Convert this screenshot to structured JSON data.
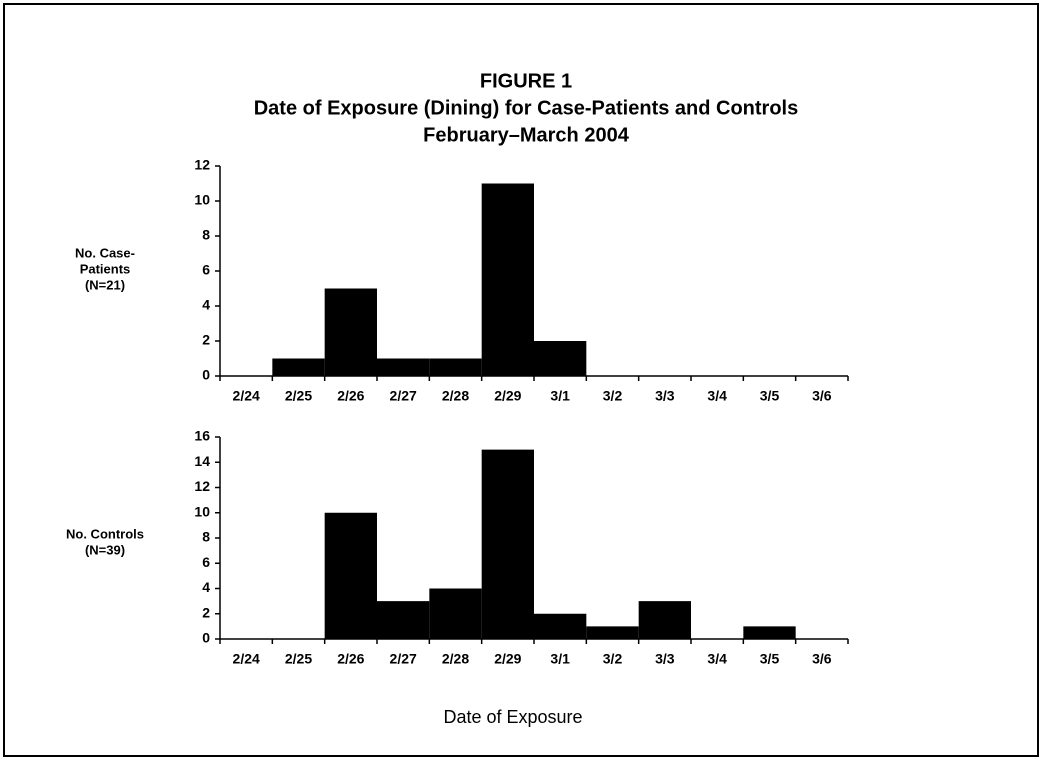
{
  "figure": {
    "title_lines": [
      "FIGURE 1",
      "Date of Exposure (Dining) for Case-Patients and Controls",
      "February–March 2004"
    ],
    "xlabel": "Date of Exposure"
  },
  "chart_data": [
    {
      "type": "bar",
      "ylabel_lines": [
        "No. Case-",
        "Patients",
        "(N=21)"
      ],
      "categories": [
        "2/24",
        "2/25",
        "2/26",
        "2/27",
        "2/28",
        "2/29",
        "3/1",
        "3/2",
        "3/3",
        "3/4",
        "3/5",
        "3/6"
      ],
      "values": [
        0,
        1,
        5,
        1,
        1,
        11,
        2,
        0,
        0,
        0,
        0,
        0
      ],
      "color": "#000000",
      "ylim": [
        0,
        12
      ],
      "yticks": [
        0,
        2,
        4,
        6,
        8,
        10,
        12
      ]
    },
    {
      "type": "bar",
      "ylabel_lines": [
        "No. Controls",
        "(N=39)"
      ],
      "categories": [
        "2/24",
        "2/25",
        "2/26",
        "2/27",
        "2/28",
        "2/29",
        "3/1",
        "3/2",
        "3/3",
        "3/4",
        "3/5",
        "3/6"
      ],
      "values": [
        0,
        0,
        10,
        3,
        4,
        15,
        2,
        1,
        3,
        0,
        1,
        0
      ],
      "color": "#000000",
      "ylim": [
        0,
        16
      ],
      "yticks": [
        0,
        2,
        4,
        6,
        8,
        10,
        12,
        14,
        16
      ]
    }
  ]
}
